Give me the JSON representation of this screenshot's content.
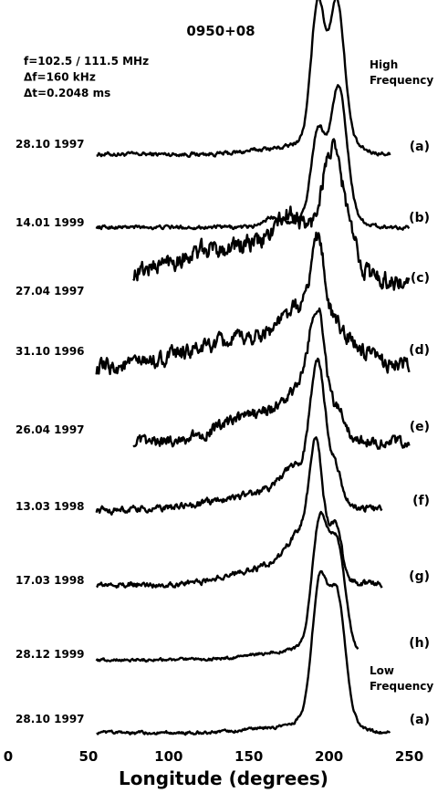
{
  "chart_data": {
    "type": "line",
    "title": "0950+08",
    "params": [
      "f=102.5 / 111.5 MHz",
      "Δf=160 kHz",
      "Δt=0.2048 ms"
    ],
    "top_note": "High\nFrequency",
    "bottom_note": "Low\nFrequency",
    "xlabel": "Longitude (degrees)",
    "ylabel": "",
    "xlim": [
      0,
      260
    ],
    "x_ticks": [
      0,
      50,
      100,
      150,
      200,
      250
    ],
    "grid": false,
    "legend": "none",
    "series": [
      {
        "date": "28.10 1997",
        "tag": "(a)",
        "x_start": 55,
        "x_end": 238,
        "noise": 0.012,
        "components": [
          [
            165,
            15,
            0.04
          ],
          [
            193,
            4,
            0.92
          ],
          [
            205,
            4.5,
            0.94
          ],
          [
            199,
            12,
            0.22
          ]
        ]
      },
      {
        "date": "14.01 1999",
        "tag": "(b)",
        "x_start": 55,
        "x_end": 250,
        "noise": 0.012,
        "components": [
          [
            165,
            6,
            0.08
          ],
          [
            193,
            4,
            0.62
          ],
          [
            206,
            5,
            0.97
          ],
          [
            200,
            12,
            0.2
          ]
        ]
      },
      {
        "date": "27.04 1997",
        "tag": "(c)",
        "x_start": 78,
        "x_end": 250,
        "noise": 0.06,
        "components": [
          [
            150,
            60,
            0.42
          ],
          [
            177,
            10,
            0.28
          ],
          [
            200,
            6,
            0.55
          ],
          [
            207,
            7,
            0.45
          ]
        ]
      },
      {
        "date": "31.10 1996",
        "tag": "(d)",
        "x_start": 55,
        "x_end": 250,
        "noise": 0.06,
        "components": [
          [
            160,
            45,
            0.3
          ],
          [
            183,
            12,
            0.3
          ],
          [
            193,
            4,
            0.7
          ],
          [
            205,
            10,
            0.18
          ]
        ]
      },
      {
        "date": "26.04 1997",
        "tag": "(e)",
        "x_start": 78,
        "x_end": 250,
        "noise": 0.04,
        "components": [
          [
            160,
            25,
            0.25
          ],
          [
            185,
            10,
            0.3
          ],
          [
            193,
            5,
            0.82
          ],
          [
            207,
            4,
            0.18
          ]
        ]
      },
      {
        "date": "13.03 1998",
        "tag": "(f)",
        "x_start": 55,
        "x_end": 233,
        "noise": 0.02,
        "components": [
          [
            160,
            30,
            0.12
          ],
          [
            180,
            10,
            0.22
          ],
          [
            193,
            4.5,
            0.95
          ],
          [
            204,
            4,
            0.25
          ]
        ]
      },
      {
        "date": "17.03 1998",
        "tag": "(g)",
        "x_start": 55,
        "x_end": 233,
        "noise": 0.02,
        "components": [
          [
            165,
            25,
            0.15
          ],
          [
            185,
            10,
            0.35
          ],
          [
            192,
            4,
            0.88
          ],
          [
            204,
            4,
            0.4
          ]
        ]
      },
      {
        "date": "28.12 1999",
        "tag": "(h)",
        "x_start": 55,
        "x_end": 218,
        "noise": 0.01,
        "components": [
          [
            170,
            20,
            0.06
          ],
          [
            194,
            4.5,
            0.95
          ],
          [
            205,
            5,
            0.82
          ],
          [
            199,
            12,
            0.18
          ]
        ]
      },
      {
        "date": "28.10 1997",
        "tag": "(a)",
        "x_start": 55,
        "x_end": 238,
        "noise": 0.01,
        "components": [
          [
            170,
            20,
            0.04
          ],
          [
            194,
            4.5,
            0.96
          ],
          [
            205,
            5,
            0.9
          ],
          [
            199,
            12,
            0.2
          ]
        ]
      }
    ]
  }
}
